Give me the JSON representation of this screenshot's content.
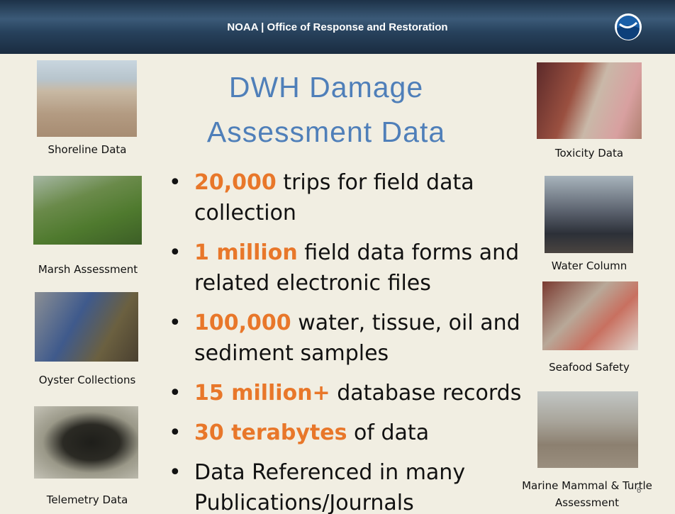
{
  "header": {
    "title": "NOAA | Office of Response and Restoration"
  },
  "title": "DWH Damage Assessment Data",
  "bullets": [
    {
      "highlight": "20,000",
      "text": "trips for field data collection"
    },
    {
      "highlight": "1 million",
      "text": "field data forms and related electronic files"
    },
    {
      "highlight": "100,000",
      "text": "water, tissue, oil and sediment samples"
    },
    {
      "highlight": "15 million+",
      "text": "database records"
    },
    {
      "highlight": "30 terabytes",
      "text": "of data"
    },
    {
      "text": "Data Referenced in many Publications/Journals"
    }
  ],
  "left_images": [
    {
      "caption": "Shoreline Data"
    },
    {
      "caption": "Marsh Assessment"
    },
    {
      "caption": "Oyster Collections"
    },
    {
      "caption": "Telemetry Data"
    }
  ],
  "right_images": [
    {
      "caption": "Toxicity Data"
    },
    {
      "caption": "Water Column"
    },
    {
      "caption": "Seafood Safety"
    },
    {
      "caption": "Marine Mammal & Turtle Assessment"
    }
  ],
  "page_number": "6"
}
